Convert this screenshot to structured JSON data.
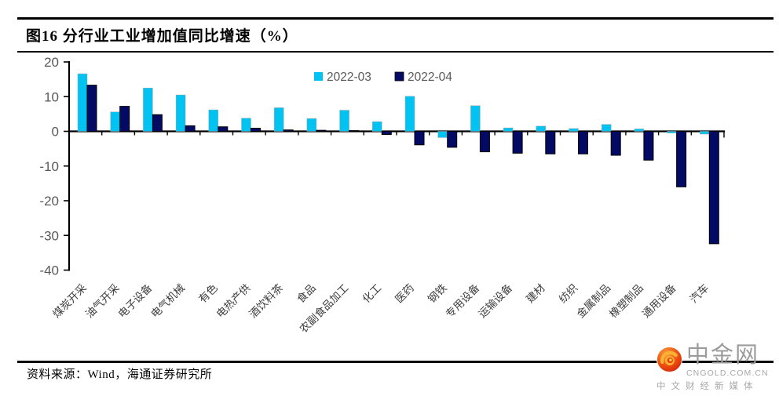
{
  "header": {
    "title": "图16 分行业工业增加值同比增速（%）"
  },
  "chart_data": {
    "type": "bar",
    "title": "图16 分行业工业增加值同比增速（%）",
    "unit": "%",
    "categories": [
      "煤炭开采",
      "油气开采",
      "电子设备",
      "电气机械",
      "有色",
      "电热产供",
      "酒饮料茶",
      "食品",
      "农副食品加工",
      "化工",
      "医药",
      "钢铁",
      "专用设备",
      "运输设备",
      "建材",
      "纺织",
      "金属制品",
      "橡塑制品",
      "通用设备",
      "汽车"
    ],
    "series": [
      {
        "name": "2022-03",
        "color": "#00C3F2",
        "values": [
          16.6,
          5.6,
          12.5,
          10.5,
          6.2,
          3.8,
          6.8,
          3.7,
          6.1,
          2.8,
          10.1,
          -1.8,
          7.4,
          1.0,
          1.5,
          0.8,
          2.0,
          0.7,
          -0.5,
          -0.8
        ]
      },
      {
        "name": "2022-04",
        "color": "#030A63",
        "values": [
          13.3,
          7.2,
          4.8,
          1.6,
          1.3,
          0.9,
          0.4,
          0.3,
          0.2,
          -0.9,
          -3.9,
          -4.6,
          -5.9,
          -6.3,
          -6.5,
          -6.5,
          -6.9,
          -8.3,
          -16.0,
          -32.4
        ]
      }
    ],
    "ylim": [
      -40,
      20
    ],
    "yticks": [
      20,
      10,
      0,
      -10,
      -20,
      -30,
      -40
    ],
    "grid": false,
    "legend_position": "top-center"
  },
  "footer": {
    "source": "资料来源：Wind，海通证券研究所",
    "logo": {
      "name": "中金网",
      "url": "CNGOLD.COM.CN",
      "tagline": "中文财经新媒体"
    }
  }
}
